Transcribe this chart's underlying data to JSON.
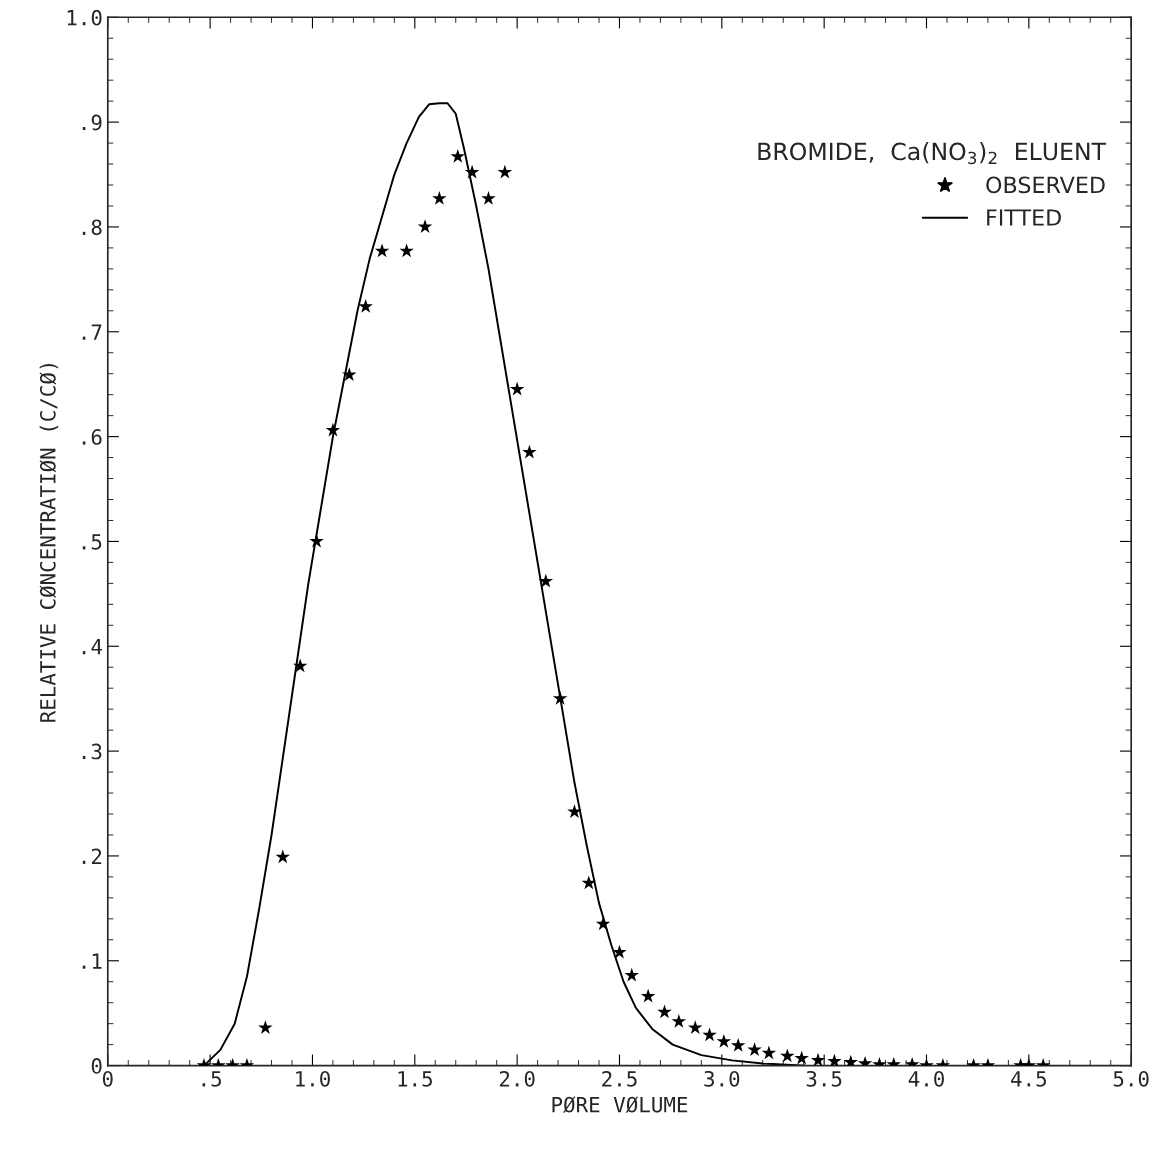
{
  "chart_data": {
    "type": "scatter",
    "xlabel": "PØRE VØLUME",
    "ylabel": "RELATIVE CØNCENTRATIØN (C/CØ)",
    "legend_title": "BROMIDE,  Ca(NO$_{3}$)$_{2}$  ELUENT",
    "legend": "top right",
    "xlim": [
      0,
      5
    ],
    "ylim": [
      0,
      1
    ],
    "xticks": [
      0,
      {
        "value": 0.5,
        "label": ".5"
      },
      {
        "value": 1.0,
        "label": "1.0"
      },
      {
        "value": 1.5,
        "label": "1.5"
      },
      {
        "value": 2.0,
        "label": "2.0"
      },
      {
        "value": 2.5,
        "label": "2.5"
      },
      {
        "value": 3.0,
        "label": "3.0"
      },
      {
        "value": 3.5,
        "label": "3.5"
      },
      {
        "value": 4.0,
        "label": "4.0"
      },
      {
        "value": 4.5,
        "label": "4.5"
      },
      {
        "value": 5.0,
        "label": "5.0"
      }
    ],
    "yticks": [
      0,
      {
        "value": 0.1,
        "label": ".1"
      },
      {
        "value": 0.2,
        "label": ".2"
      },
      {
        "value": 0.3,
        "label": ".3"
      },
      {
        "value": 0.4,
        "label": ".4"
      },
      {
        "value": 0.5,
        "label": ".5"
      },
      {
        "value": 0.6,
        "label": ".6"
      },
      {
        "value": 0.7,
        "label": ".7"
      },
      {
        "value": 0.8,
        "label": ".8"
      },
      {
        "value": 0.9,
        "label": ".9"
      },
      {
        "value": 1.0,
        "label": "1.0"
      }
    ],
    "grid": false,
    "series": [
      {
        "name": "OBSERVED",
        "type": "scatter",
        "marker": "star",
        "color": "#000000",
        "x": [
          0.47,
          0.54,
          0.61,
          0.68,
          0.77,
          0.855,
          0.94,
          1.02,
          1.1,
          1.18,
          1.26,
          1.34,
          1.46,
          1.55,
          1.62,
          1.71,
          1.78,
          1.86,
          1.94,
          2.0,
          2.06,
          2.14,
          2.21,
          2.28,
          2.35,
          2.42,
          2.5,
          2.56,
          2.64,
          2.72,
          2.79,
          2.87,
          2.94,
          3.01,
          3.08,
          3.16,
          3.23,
          3.32,
          3.39,
          3.47,
          3.55,
          3.63,
          3.7,
          3.77,
          3.84,
          3.93,
          4.0,
          4.08,
          4.23,
          4.3,
          4.46,
          4.5,
          4.57
        ],
        "values": [
          0,
          0,
          0,
          0,
          0.036,
          0.199,
          0.381,
          0.5,
          0.606,
          0.659,
          0.724,
          0.777,
          0.777,
          0.8,
          0.827,
          0.867,
          0.852,
          0.827,
          0.852,
          0.645,
          0.585,
          0.462,
          0.35,
          0.242,
          0.174,
          0.135,
          0.108,
          0.086,
          0.066,
          0.051,
          0.042,
          0.036,
          0.029,
          0.023,
          0.019,
          0.015,
          0.012,
          0.009,
          0.007,
          0.005,
          0.004,
          0.003,
          0.002,
          0.001,
          0.001,
          0.001,
          0,
          0,
          0,
          0,
          0,
          0,
          0
        ]
      },
      {
        "name": "FITTED",
        "type": "line",
        "marker": "none",
        "line_style": "solid",
        "color": "#000000",
        "x": [
          0.47,
          0.55,
          0.62,
          0.68,
          0.74,
          0.8,
          0.86,
          0.92,
          0.98,
          1.04,
          1.1,
          1.16,
          1.22,
          1.28,
          1.34,
          1.4,
          1.46,
          1.52,
          1.57,
          1.62,
          1.66,
          1.7,
          1.74,
          1.8,
          1.86,
          1.92,
          1.98,
          2.04,
          2.1,
          2.16,
          2.22,
          2.28,
          2.34,
          2.4,
          2.46,
          2.52,
          2.58,
          2.66,
          2.76,
          2.9,
          3.05,
          3.2,
          3.41
        ],
        "values": [
          0,
          0.015,
          0.04,
          0.085,
          0.15,
          0.22,
          0.3,
          0.38,
          0.46,
          0.53,
          0.6,
          0.66,
          0.72,
          0.77,
          0.81,
          0.85,
          0.88,
          0.905,
          0.917,
          0.918,
          0.918,
          0.908,
          0.875,
          0.82,
          0.76,
          0.69,
          0.62,
          0.55,
          0.48,
          0.41,
          0.34,
          0.27,
          0.21,
          0.155,
          0.115,
          0.08,
          0.055,
          0.035,
          0.02,
          0.01,
          0.005,
          0.002,
          0
        ]
      }
    ]
  }
}
